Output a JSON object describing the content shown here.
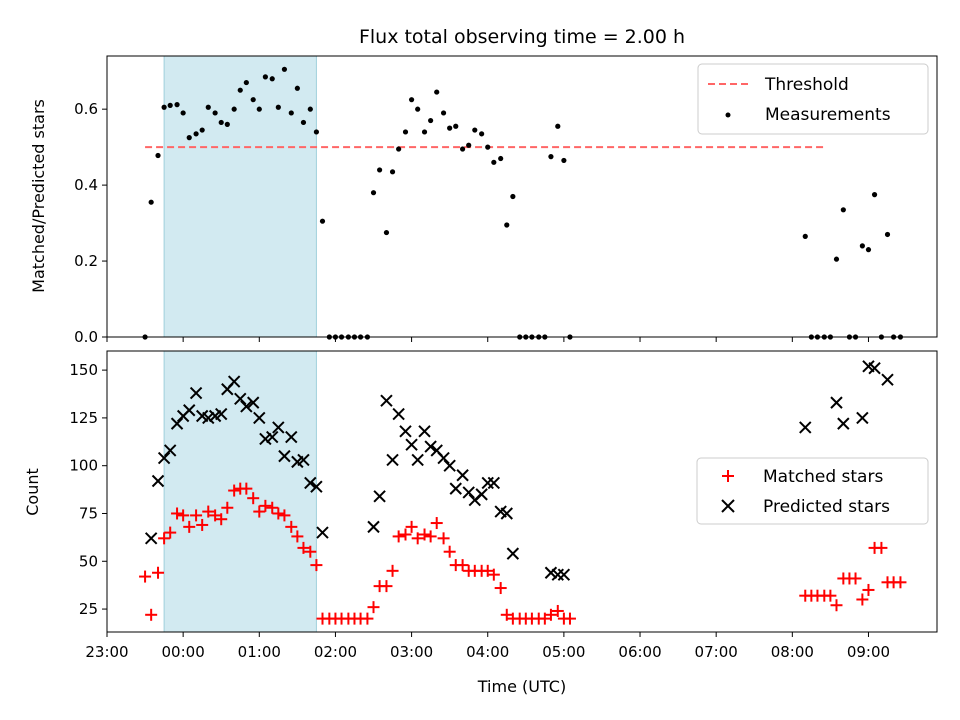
{
  "title": "Flux total observing time = 2.00 h",
  "colors": {
    "highlight": "#add8e6",
    "threshold": "#ff6666",
    "measurement": "#000000",
    "matched": "#ff0000",
    "predicted": "#000000"
  },
  "chart_data": [
    {
      "type": "scatter",
      "ylabel": "Matched/Predicted stars",
      "xlim": [
        23.0,
        33.9
      ],
      "ylim": [
        0,
        0.74
      ],
      "yticks": [
        0.0,
        0.2,
        0.4,
        0.6
      ],
      "ytick_labels": [
        "0.0",
        "0.2",
        "0.4",
        "0.6"
      ],
      "highlight_span": [
        23.75,
        25.75
      ],
      "threshold": {
        "name": "Threshold",
        "x": [
          23.5,
          32.45
        ],
        "y": 0.5
      },
      "legend": {
        "position": "top-right",
        "entries": [
          "Threshold",
          "Measurements"
        ]
      },
      "series": [
        {
          "name": "Measurements",
          "points": [
            [
              23.5,
              0.0
            ],
            [
              23.58,
              0.355
            ],
            [
              23.67,
              0.478
            ],
            [
              23.75,
              0.605
            ],
            [
              23.83,
              0.61
            ],
            [
              23.92,
              0.612
            ],
            [
              24.0,
              0.59
            ],
            [
              24.08,
              0.525
            ],
            [
              24.17,
              0.535
            ],
            [
              24.25,
              0.545
            ],
            [
              24.33,
              0.605
            ],
            [
              24.42,
              0.59
            ],
            [
              24.5,
              0.565
            ],
            [
              24.58,
              0.56
            ],
            [
              24.67,
              0.6
            ],
            [
              24.75,
              0.65
            ],
            [
              24.83,
              0.67
            ],
            [
              24.92,
              0.625
            ],
            [
              25.0,
              0.6
            ],
            [
              25.08,
              0.685
            ],
            [
              25.17,
              0.68
            ],
            [
              25.25,
              0.605
            ],
            [
              25.33,
              0.705
            ],
            [
              25.42,
              0.59
            ],
            [
              25.5,
              0.655
            ],
            [
              25.58,
              0.565
            ],
            [
              25.67,
              0.6
            ],
            [
              25.75,
              0.54
            ],
            [
              25.83,
              0.305
            ],
            [
              25.92,
              0.0
            ],
            [
              26.0,
              0.0
            ],
            [
              26.08,
              0.0
            ],
            [
              26.17,
              0.0
            ],
            [
              26.25,
              0.0
            ],
            [
              26.33,
              0.0
            ],
            [
              26.42,
              0.0
            ],
            [
              26.5,
              0.38
            ],
            [
              26.58,
              0.44
            ],
            [
              26.67,
              0.275
            ],
            [
              26.75,
              0.435
            ],
            [
              26.83,
              0.495
            ],
            [
              26.92,
              0.54
            ],
            [
              27.0,
              0.625
            ],
            [
              27.08,
              0.6
            ],
            [
              27.17,
              0.54
            ],
            [
              27.25,
              0.57
            ],
            [
              27.33,
              0.645
            ],
            [
              27.42,
              0.59
            ],
            [
              27.5,
              0.55
            ],
            [
              27.58,
              0.555
            ],
            [
              27.67,
              0.495
            ],
            [
              27.75,
              0.505
            ],
            [
              27.83,
              0.545
            ],
            [
              27.92,
              0.535
            ],
            [
              28.0,
              0.5
            ],
            [
              28.08,
              0.46
            ],
            [
              28.17,
              0.47
            ],
            [
              28.25,
              0.295
            ],
            [
              28.33,
              0.37
            ],
            [
              28.42,
              0.0
            ],
            [
              28.5,
              0.0
            ],
            [
              28.58,
              0.0
            ],
            [
              28.67,
              0.0
            ],
            [
              28.75,
              0.0
            ],
            [
              28.83,
              0.475
            ],
            [
              28.92,
              0.555
            ],
            [
              29.0,
              0.465
            ],
            [
              29.08,
              0.0
            ],
            [
              32.17,
              0.265
            ],
            [
              32.25,
              0.0
            ],
            [
              32.33,
              0.0
            ],
            [
              32.42,
              0.0
            ],
            [
              32.5,
              0.0
            ],
            [
              32.58,
              0.205
            ],
            [
              32.67,
              0.335
            ],
            [
              32.75,
              0.0
            ],
            [
              32.83,
              0.0
            ],
            [
              32.92,
              0.24
            ],
            [
              33.0,
              0.23
            ],
            [
              33.08,
              0.375
            ],
            [
              33.17,
              0.0
            ],
            [
              33.25,
              0.27
            ],
            [
              33.33,
              0.0
            ],
            [
              33.42,
              0.0
            ]
          ]
        }
      ]
    },
    {
      "type": "scatter",
      "xlabel": "Time (UTC)",
      "ylabel": "Count",
      "xlim": [
        23.0,
        33.9
      ],
      "ylim": [
        13,
        160
      ],
      "yticks": [
        25,
        50,
        75,
        100,
        125,
        150
      ],
      "ytick_labels": [
        "25",
        "50",
        "75",
        "100",
        "125",
        "150"
      ],
      "xticks": [
        23,
        24,
        25,
        26,
        27,
        28,
        29,
        30,
        31,
        32,
        33
      ],
      "xtick_labels": [
        "23:00",
        "00:00",
        "01:00",
        "02:00",
        "03:00",
        "04:00",
        "05:00",
        "06:00",
        "07:00",
        "08:00",
        "09:00"
      ],
      "highlight_span": [
        23.75,
        25.75
      ],
      "legend": {
        "position": "center-right",
        "entries": [
          "Matched stars",
          "Predicted stars"
        ]
      },
      "series": [
        {
          "name": "Matched stars",
          "points": [
            [
              23.5,
              42
            ],
            [
              23.58,
              22
            ],
            [
              23.67,
              44
            ],
            [
              23.75,
              62
            ],
            [
              23.83,
              65
            ],
            [
              23.92,
              75
            ],
            [
              24.0,
              74
            ],
            [
              24.08,
              68
            ],
            [
              24.17,
              74
            ],
            [
              24.25,
              69
            ],
            [
              24.33,
              76
            ],
            [
              24.42,
              74
            ],
            [
              24.5,
              72
            ],
            [
              24.58,
              78
            ],
            [
              24.67,
              87
            ],
            [
              24.75,
              88
            ],
            [
              24.83,
              88
            ],
            [
              24.92,
              83
            ],
            [
              25.0,
              76
            ],
            [
              25.08,
              79
            ],
            [
              25.17,
              78
            ],
            [
              25.25,
              75
            ],
            [
              25.33,
              74
            ],
            [
              25.42,
              68
            ],
            [
              25.5,
              63
            ],
            [
              25.58,
              57
            ],
            [
              25.67,
              55
            ],
            [
              25.75,
              48
            ],
            [
              25.83,
              20
            ],
            [
              25.92,
              20
            ],
            [
              26.0,
              20
            ],
            [
              26.08,
              20
            ],
            [
              26.17,
              20
            ],
            [
              26.25,
              20
            ],
            [
              26.33,
              20
            ],
            [
              26.42,
              20
            ],
            [
              26.5,
              26
            ],
            [
              26.58,
              37
            ],
            [
              26.67,
              37
            ],
            [
              26.75,
              45
            ],
            [
              26.83,
              63
            ],
            [
              26.92,
              64
            ],
            [
              27.0,
              68
            ],
            [
              27.08,
              62
            ],
            [
              27.17,
              64
            ],
            [
              27.25,
              63
            ],
            [
              27.33,
              70
            ],
            [
              27.42,
              62
            ],
            [
              27.5,
              55
            ],
            [
              27.58,
              48
            ],
            [
              27.67,
              48
            ],
            [
              27.75,
              45
            ],
            [
              27.83,
              45
            ],
            [
              27.92,
              45
            ],
            [
              28.0,
              45
            ],
            [
              28.08,
              43
            ],
            [
              28.17,
              36
            ],
            [
              28.25,
              22
            ],
            [
              28.33,
              20
            ],
            [
              28.42,
              20
            ],
            [
              28.5,
              20
            ],
            [
              28.58,
              20
            ],
            [
              28.67,
              20
            ],
            [
              28.75,
              20
            ],
            [
              28.83,
              22
            ],
            [
              28.92,
              24
            ],
            [
              29.0,
              20
            ],
            [
              29.08,
              20
            ],
            [
              32.17,
              32
            ],
            [
              32.25,
              32
            ],
            [
              32.33,
              32
            ],
            [
              32.42,
              32
            ],
            [
              32.5,
              32
            ],
            [
              32.58,
              27
            ],
            [
              32.67,
              41
            ],
            [
              32.75,
              41
            ],
            [
              32.83,
              41
            ],
            [
              32.92,
              30
            ],
            [
              33.0,
              35
            ],
            [
              33.08,
              57
            ],
            [
              33.17,
              57
            ],
            [
              33.25,
              39
            ],
            [
              33.33,
              39
            ],
            [
              33.42,
              39
            ]
          ]
        },
        {
          "name": "Predicted stars",
          "points": [
            [
              23.58,
              62
            ],
            [
              23.67,
              92
            ],
            [
              23.75,
              104
            ],
            [
              23.83,
              108
            ],
            [
              23.92,
              122
            ],
            [
              24.0,
              126
            ],
            [
              24.08,
              129
            ],
            [
              24.17,
              138
            ],
            [
              24.25,
              126
            ],
            [
              24.33,
              125
            ],
            [
              24.42,
              126
            ],
            [
              24.5,
              127
            ],
            [
              24.58,
              140
            ],
            [
              24.67,
              144
            ],
            [
              24.75,
              135
            ],
            [
              24.83,
              131
            ],
            [
              24.92,
              133
            ],
            [
              25.0,
              125
            ],
            [
              25.08,
              114
            ],
            [
              25.17,
              115
            ],
            [
              25.25,
              120
            ],
            [
              25.33,
              105
            ],
            [
              25.42,
              115
            ],
            [
              25.5,
              102
            ],
            [
              25.58,
              103
            ],
            [
              25.67,
              91
            ],
            [
              25.75,
              89
            ],
            [
              25.83,
              65
            ],
            [
              26.5,
              68
            ],
            [
              26.58,
              84
            ],
            [
              26.67,
              134
            ],
            [
              26.75,
              103
            ],
            [
              26.83,
              127
            ],
            [
              26.92,
              118
            ],
            [
              27.0,
              111
            ],
            [
              27.08,
              103
            ],
            [
              27.17,
              118
            ],
            [
              27.25,
              110
            ],
            [
              27.33,
              108
            ],
            [
              27.42,
              104
            ],
            [
              27.5,
              100
            ],
            [
              27.58,
              88
            ],
            [
              27.67,
              95
            ],
            [
              27.75,
              86
            ],
            [
              27.83,
              82
            ],
            [
              27.92,
              85
            ],
            [
              28.0,
              91
            ],
            [
              28.08,
              91
            ],
            [
              28.17,
              76
            ],
            [
              28.25,
              75
            ],
            [
              28.33,
              54
            ],
            [
              28.83,
              44
            ],
            [
              28.92,
              43
            ],
            [
              29.0,
              43
            ],
            [
              32.17,
              120
            ],
            [
              32.58,
              133
            ],
            [
              32.67,
              122
            ],
            [
              32.92,
              125
            ],
            [
              33.0,
              152
            ],
            [
              33.08,
              151
            ],
            [
              33.25,
              145
            ]
          ]
        }
      ]
    }
  ]
}
